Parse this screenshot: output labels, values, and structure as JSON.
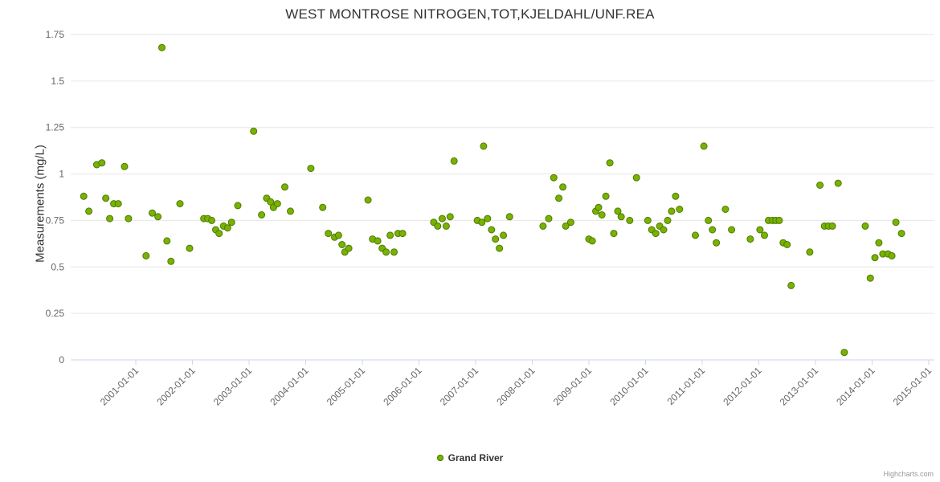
{
  "credits": "Highcharts.com",
  "colors": {
    "point_fill": "#77b300",
    "point_stroke": "#507800",
    "grid": "#e6e6e6",
    "axis_line": "#ccd6eb",
    "tick_color": "#ccd6eb",
    "tick_label": "#666666",
    "title": "#333333",
    "credits": "#999999"
  },
  "chart_data": {
    "type": "scatter",
    "title": "WEST MONTROSE NITROGEN,TOT,KJELDAHL/UNF.REA",
    "xlabel": "",
    "ylabel": "Measurements (mg/L)",
    "ylim": [
      0,
      1.75
    ],
    "yticks": [
      0,
      0.25,
      0.5,
      0.75,
      1,
      1.25,
      1.5,
      1.75
    ],
    "ytick_labels": [
      "0",
      "0.25",
      "0.5",
      "0.75",
      "1",
      "1.25",
      "1.5",
      "1.75"
    ],
    "xlim": [
      1999.85,
      2015.1
    ],
    "xticks": [
      2001,
      2002,
      2003,
      2004,
      2005,
      2006,
      2007,
      2008,
      2009,
      2010,
      2011,
      2012,
      2013,
      2014,
      2015
    ],
    "xtick_labels": [
      "2001-01-01",
      "2002-01-01",
      "2003-01-01",
      "2004-01-01",
      "2005-01-01",
      "2006-01-01",
      "2007-01-01",
      "2008-01-01",
      "2009-01-01",
      "2010-01-01",
      "2011-01-01",
      "2012-01-01",
      "2013-01-01",
      "2014-01-01",
      "2015-01-01"
    ],
    "grid": true,
    "legend_position": "bottom",
    "series": [
      {
        "name": "Grand River",
        "color": "#77b300",
        "points": [
          [
            2000.08,
            0.88
          ],
          [
            2000.17,
            0.8
          ],
          [
            2000.31,
            1.05
          ],
          [
            2000.4,
            1.06
          ],
          [
            2000.47,
            0.87
          ],
          [
            2000.54,
            0.76
          ],
          [
            2000.61,
            0.84
          ],
          [
            2000.69,
            0.84
          ],
          [
            2000.8,
            1.04
          ],
          [
            2000.87,
            0.76
          ],
          [
            2001.18,
            0.56
          ],
          [
            2001.29,
            0.79
          ],
          [
            2001.39,
            0.77
          ],
          [
            2001.46,
            1.68
          ],
          [
            2001.55,
            0.64
          ],
          [
            2001.62,
            0.53
          ],
          [
            2001.78,
            0.84
          ],
          [
            2001.95,
            0.6
          ],
          [
            2002.2,
            0.76
          ],
          [
            2002.27,
            0.76
          ],
          [
            2002.34,
            0.75
          ],
          [
            2002.41,
            0.7
          ],
          [
            2002.47,
            0.68
          ],
          [
            2002.55,
            0.72
          ],
          [
            2002.62,
            0.71
          ],
          [
            2002.69,
            0.74
          ],
          [
            2002.8,
            0.83
          ],
          [
            2003.08,
            1.23
          ],
          [
            2003.22,
            0.78
          ],
          [
            2003.31,
            0.87
          ],
          [
            2003.38,
            0.85
          ],
          [
            2003.43,
            0.82
          ],
          [
            2003.5,
            0.84
          ],
          [
            2003.63,
            0.93
          ],
          [
            2003.73,
            0.8
          ],
          [
            2004.09,
            1.03
          ],
          [
            2004.3,
            0.82
          ],
          [
            2004.4,
            0.68
          ],
          [
            2004.51,
            0.66
          ],
          [
            2004.58,
            0.67
          ],
          [
            2004.64,
            0.62
          ],
          [
            2004.69,
            0.58
          ],
          [
            2004.76,
            0.6
          ],
          [
            2005.1,
            0.86
          ],
          [
            2005.18,
            0.65
          ],
          [
            2005.27,
            0.64
          ],
          [
            2005.35,
            0.6
          ],
          [
            2005.42,
            0.58
          ],
          [
            2005.49,
            0.67
          ],
          [
            2005.56,
            0.58
          ],
          [
            2005.63,
            0.68
          ],
          [
            2005.71,
            0.68
          ],
          [
            2006.26,
            0.74
          ],
          [
            2006.33,
            0.72
          ],
          [
            2006.41,
            0.76
          ],
          [
            2006.48,
            0.72
          ],
          [
            2006.55,
            0.77
          ],
          [
            2006.62,
            1.07
          ],
          [
            2007.03,
            0.75
          ],
          [
            2007.11,
            0.74
          ],
          [
            2007.14,
            1.15
          ],
          [
            2007.21,
            0.76
          ],
          [
            2007.28,
            0.7
          ],
          [
            2007.35,
            0.65
          ],
          [
            2007.42,
            0.6
          ],
          [
            2007.49,
            0.67
          ],
          [
            2007.6,
            0.77
          ],
          [
            2008.19,
            0.72
          ],
          [
            2008.29,
            0.76
          ],
          [
            2008.38,
            0.98
          ],
          [
            2008.47,
            0.87
          ],
          [
            2008.54,
            0.93
          ],
          [
            2008.59,
            0.72
          ],
          [
            2008.68,
            0.74
          ],
          [
            2009.0,
            0.65
          ],
          [
            2009.06,
            0.64
          ],
          [
            2009.12,
            0.8
          ],
          [
            2009.17,
            0.82
          ],
          [
            2009.23,
            0.78
          ],
          [
            2009.3,
            0.88
          ],
          [
            2009.37,
            1.06
          ],
          [
            2009.44,
            0.68
          ],
          [
            2009.51,
            0.8
          ],
          [
            2009.57,
            0.77
          ],
          [
            2009.72,
            0.75
          ],
          [
            2009.84,
            0.98
          ],
          [
            2010.04,
            0.75
          ],
          [
            2010.11,
            0.7
          ],
          [
            2010.18,
            0.68
          ],
          [
            2010.25,
            0.72
          ],
          [
            2010.32,
            0.7
          ],
          [
            2010.39,
            0.75
          ],
          [
            2010.46,
            0.8
          ],
          [
            2010.53,
            0.88
          ],
          [
            2010.6,
            0.81
          ],
          [
            2010.88,
            0.67
          ],
          [
            2011.03,
            1.15
          ],
          [
            2011.11,
            0.75
          ],
          [
            2011.18,
            0.7
          ],
          [
            2011.25,
            0.63
          ],
          [
            2011.41,
            0.81
          ],
          [
            2011.52,
            0.7
          ],
          [
            2011.85,
            0.65
          ],
          [
            2012.02,
            0.7
          ],
          [
            2012.1,
            0.67
          ],
          [
            2012.17,
            0.75
          ],
          [
            2012.24,
            0.75
          ],
          [
            2012.3,
            0.75
          ],
          [
            2012.36,
            0.75
          ],
          [
            2012.43,
            0.63
          ],
          [
            2012.5,
            0.62
          ],
          [
            2012.57,
            0.4
          ],
          [
            2012.9,
            0.58
          ],
          [
            2013.08,
            0.94
          ],
          [
            2013.16,
            0.72
          ],
          [
            2013.23,
            0.72
          ],
          [
            2013.3,
            0.72
          ],
          [
            2013.4,
            0.95
          ],
          [
            2013.51,
            0.04
          ],
          [
            2013.88,
            0.72
          ],
          [
            2013.97,
            0.44
          ],
          [
            2014.05,
            0.55
          ],
          [
            2014.12,
            0.63
          ],
          [
            2014.19,
            0.57
          ],
          [
            2014.28,
            0.57
          ],
          [
            2014.35,
            0.56
          ],
          [
            2014.42,
            0.74
          ],
          [
            2014.52,
            0.68
          ]
        ]
      }
    ]
  }
}
